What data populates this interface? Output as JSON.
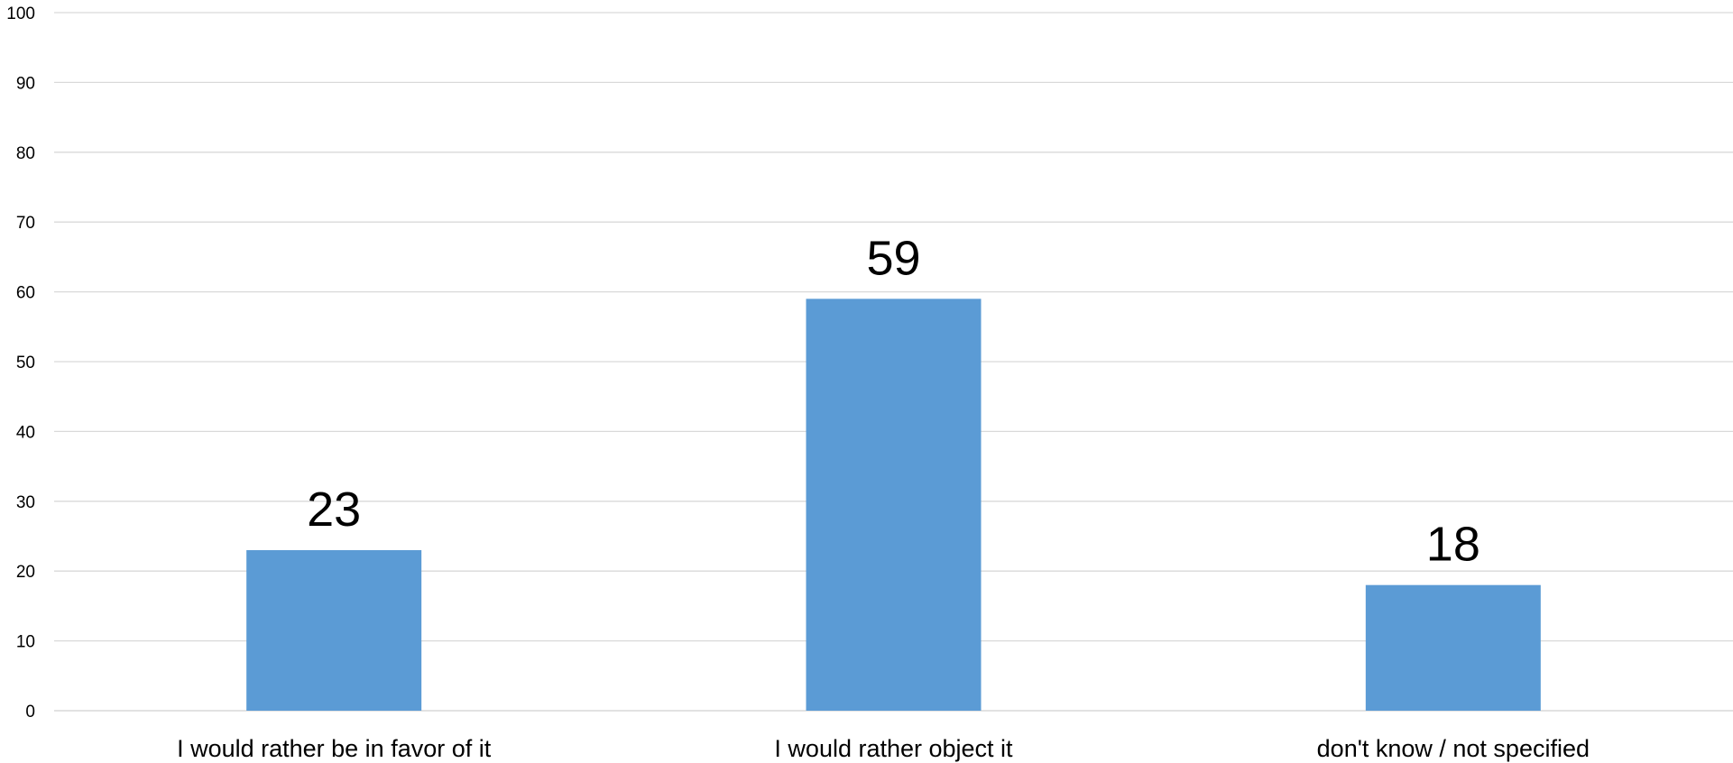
{
  "chart_data": {
    "type": "bar",
    "title": "",
    "xlabel": "",
    "ylabel": "",
    "categories": [
      "I would rather be in favor of it",
      "I would rather object it",
      "don't know / not specified"
    ],
    "values": [
      23,
      59,
      18
    ],
    "data_labels": [
      "23",
      "59",
      "18"
    ],
    "ylim": [
      0,
      100
    ],
    "y_ticks": [
      0,
      10,
      20,
      30,
      40,
      50,
      60,
      70,
      80,
      90,
      100
    ],
    "grid": true,
    "legend": "none",
    "bar_color": "#5b9bd5"
  }
}
